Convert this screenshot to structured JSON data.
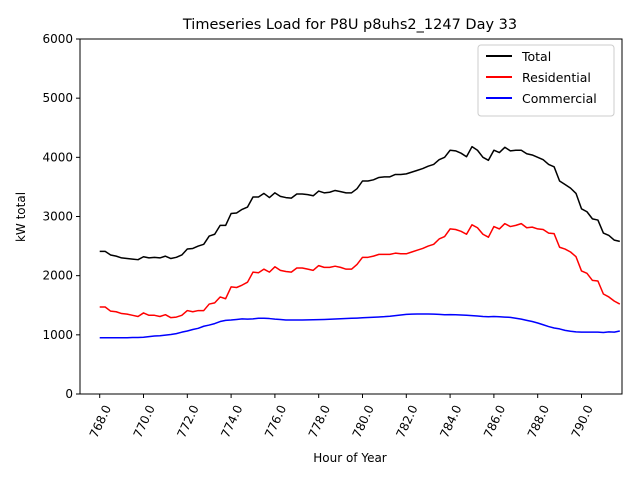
{
  "chart_data": {
    "type": "line",
    "title": "Timeseries Load for P8U p8uhs2_1247  Day 33",
    "xlabel": "Hour of Year",
    "ylabel": "kW total",
    "xlim": [
      767.1,
      791.85
    ],
    "ylim": [
      0,
      6000
    ],
    "x_ticks": [
      768,
      770,
      772,
      774,
      776,
      778,
      780,
      782,
      784,
      786,
      788,
      790
    ],
    "x_tick_labels": [
      "768.0",
      "770.0",
      "772.0",
      "774.0",
      "776.0",
      "778.0",
      "780.0",
      "782.0",
      "784.0",
      "786.0",
      "788.0",
      "790.0"
    ],
    "y_ticks": [
      0,
      1000,
      2000,
      3000,
      4000,
      5000,
      6000
    ],
    "y_tick_labels": [
      "0",
      "1000",
      "2000",
      "3000",
      "4000",
      "5000",
      "6000"
    ],
    "legend_position": "top-right",
    "x_start": 768,
    "x_step": 0.25,
    "series": [
      {
        "name": "Total",
        "color": "#000000",
        "values": [
          2410,
          2410,
          2350,
          2330,
          2300,
          2290,
          2280,
          2270,
          2320,
          2300,
          2310,
          2300,
          2330,
          2290,
          2310,
          2350,
          2450,
          2460,
          2500,
          2530,
          2670,
          2700,
          2850,
          2850,
          3050,
          3060,
          3120,
          3160,
          3330,
          3330,
          3390,
          3320,
          3400,
          3340,
          3320,
          3310,
          3380,
          3380,
          3370,
          3350,
          3430,
          3400,
          3410,
          3440,
          3420,
          3400,
          3400,
          3470,
          3600,
          3600,
          3620,
          3660,
          3670,
          3670,
          3710,
          3710,
          3720,
          3750,
          3780,
          3810,
          3850,
          3880,
          3960,
          4000,
          4120,
          4110,
          4070,
          4010,
          4180,
          4120,
          4000,
          3950,
          4120,
          4080,
          4170,
          4110,
          4120,
          4120,
          4060,
          4040,
          4000,
          3960,
          3880,
          3840,
          3600,
          3540,
          3480,
          3390,
          3130,
          3080,
          2960,
          2940,
          2720,
          2680,
          2600,
          2580
        ]
      },
      {
        "name": "Residential",
        "color": "#ff0000",
        "values": [
          1470,
          1470,
          1400,
          1390,
          1360,
          1350,
          1330,
          1310,
          1370,
          1330,
          1330,
          1310,
          1340,
          1290,
          1300,
          1330,
          1410,
          1390,
          1410,
          1410,
          1520,
          1540,
          1640,
          1610,
          1810,
          1800,
          1840,
          1890,
          2060,
          2050,
          2110,
          2060,
          2150,
          2090,
          2070,
          2060,
          2130,
          2130,
          2110,
          2090,
          2170,
          2140,
          2140,
          2160,
          2140,
          2110,
          2110,
          2190,
          2310,
          2310,
          2330,
          2360,
          2360,
          2360,
          2380,
          2370,
          2370,
          2400,
          2430,
          2460,
          2500,
          2530,
          2620,
          2660,
          2790,
          2780,
          2750,
          2700,
          2860,
          2810,
          2700,
          2650,
          2830,
          2790,
          2880,
          2830,
          2850,
          2880,
          2810,
          2820,
          2790,
          2780,
          2720,
          2710,
          2480,
          2450,
          2400,
          2320,
          2080,
          2040,
          1920,
          1910,
          1690,
          1640,
          1570,
          1520
        ]
      },
      {
        "name": "Commercial",
        "color": "#0000ff",
        "values": [
          950,
          950,
          950,
          950,
          950,
          950,
          955,
          955,
          960,
          970,
          980,
          985,
          995,
          1005,
          1020,
          1045,
          1065,
          1090,
          1110,
          1145,
          1165,
          1190,
          1225,
          1245,
          1250,
          1260,
          1270,
          1265,
          1270,
          1280,
          1280,
          1275,
          1265,
          1260,
          1250,
          1250,
          1250,
          1250,
          1252,
          1255,
          1258,
          1260,
          1263,
          1268,
          1272,
          1275,
          1280,
          1283,
          1288,
          1292,
          1297,
          1302,
          1307,
          1315,
          1325,
          1335,
          1345,
          1350,
          1352,
          1353,
          1352,
          1350,
          1345,
          1340,
          1342,
          1340,
          1336,
          1330,
          1325,
          1318,
          1310,
          1305,
          1310,
          1305,
          1300,
          1295,
          1280,
          1265,
          1245,
          1225,
          1200,
          1170,
          1140,
          1115,
          1100,
          1075,
          1060,
          1050,
          1045,
          1045,
          1045,
          1045,
          1040,
          1050,
          1045,
          1065
        ]
      }
    ]
  }
}
